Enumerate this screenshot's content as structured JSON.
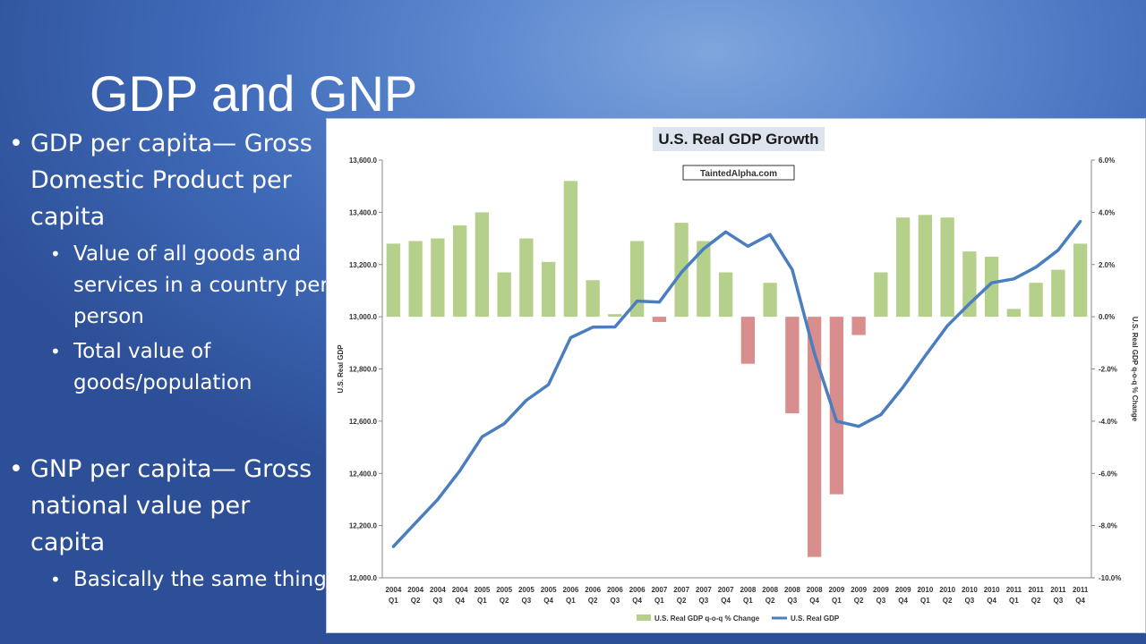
{
  "slide": {
    "title": "GDP and GNP",
    "bullets": [
      {
        "text": "GDP per capita— Gross Domestic Product per capita",
        "sub": [
          "Value of all goods and services in a country per person",
          "Total value of goods/population"
        ]
      },
      {
        "text": "GNP per capita— Gross national value per capita",
        "sub": [
          "Basically the same thing"
        ]
      }
    ]
  },
  "chart_data": {
    "type": "bar+line",
    "title": "U.S. Real GDP Growth",
    "watermark": "TaintedAlpha.com",
    "categories": [
      [
        "2004",
        "Q1"
      ],
      [
        "2004",
        "Q2"
      ],
      [
        "2004",
        "Q3"
      ],
      [
        "2004",
        "Q4"
      ],
      [
        "2005",
        "Q1"
      ],
      [
        "2005",
        "Q2"
      ],
      [
        "2005",
        "Q3"
      ],
      [
        "2005",
        "Q4"
      ],
      [
        "2006",
        "Q1"
      ],
      [
        "2006",
        "Q2"
      ],
      [
        "2006",
        "Q3"
      ],
      [
        "2006",
        "Q4"
      ],
      [
        "2007",
        "Q1"
      ],
      [
        "2007",
        "Q2"
      ],
      [
        "2007",
        "Q3"
      ],
      [
        "2007",
        "Q4"
      ],
      [
        "2008",
        "Q1"
      ],
      [
        "2008",
        "Q2"
      ],
      [
        "2008",
        "Q3"
      ],
      [
        "2008",
        "Q4"
      ],
      [
        "2009",
        "Q1"
      ],
      [
        "2009",
        "Q2"
      ],
      [
        "2009",
        "Q3"
      ],
      [
        "2009",
        "Q4"
      ],
      [
        "2010",
        "Q1"
      ],
      [
        "2010",
        "Q2"
      ],
      [
        "2010",
        "Q3"
      ],
      [
        "2010",
        "Q4"
      ],
      [
        "2011",
        "Q1"
      ],
      [
        "2011",
        "Q2"
      ],
      [
        "2011",
        "Q3"
      ],
      [
        "2011",
        "Q4"
      ]
    ],
    "series": [
      {
        "name": "U.S. Real GDP q-o-q % Change",
        "type": "bar",
        "axis": "right",
        "positive_color": "#b5d08a",
        "negative_color": "#d98e8e",
        "values": [
          2.8,
          2.9,
          3.0,
          3.5,
          4.0,
          1.7,
          3.0,
          2.1,
          5.2,
          1.4,
          0.1,
          2.9,
          -0.2,
          3.6,
          2.9,
          1.7,
          -1.8,
          1.3,
          -3.7,
          -9.2,
          -6.8,
          -0.7,
          1.7,
          3.8,
          3.9,
          3.8,
          2.5,
          2.3,
          0.3,
          1.3,
          1.8,
          2.8
        ]
      },
      {
        "name": "U.S. Real GDP",
        "type": "line",
        "axis": "left",
        "color": "#4a7ebf",
        "values": [
          12120,
          12210,
          12300,
          12410,
          12540,
          12590,
          12680,
          12740,
          12920,
          12960,
          12961,
          13060,
          13056,
          13170,
          13260,
          13325,
          13270,
          13315,
          13180,
          12860,
          12600,
          12580,
          12625,
          12730,
          12850,
          12965,
          13050,
          13130,
          13145,
          13190,
          13255,
          13365
        ]
      }
    ],
    "y_left": {
      "label": "U.S. Real GDP",
      "min": 12000,
      "max": 13600,
      "step": 200,
      "ticks": [
        "12,000.0",
        "12,200.0",
        "12,400.0",
        "12,600.0",
        "12,800.0",
        "13,000.0",
        "13,200.0",
        "13,400.0",
        "13,600.0"
      ]
    },
    "y_right": {
      "label": "U.S. Real GDP q-o-q % Change",
      "min": -10,
      "max": 6,
      "step": 2,
      "ticks": [
        "-10.0%",
        "-8.0%",
        "-6.0%",
        "-4.0%",
        "-2.0%",
        "0.0%",
        "2.0%",
        "4.0%",
        "6.0%"
      ]
    },
    "legend_position": "bottom",
    "grid": false
  }
}
